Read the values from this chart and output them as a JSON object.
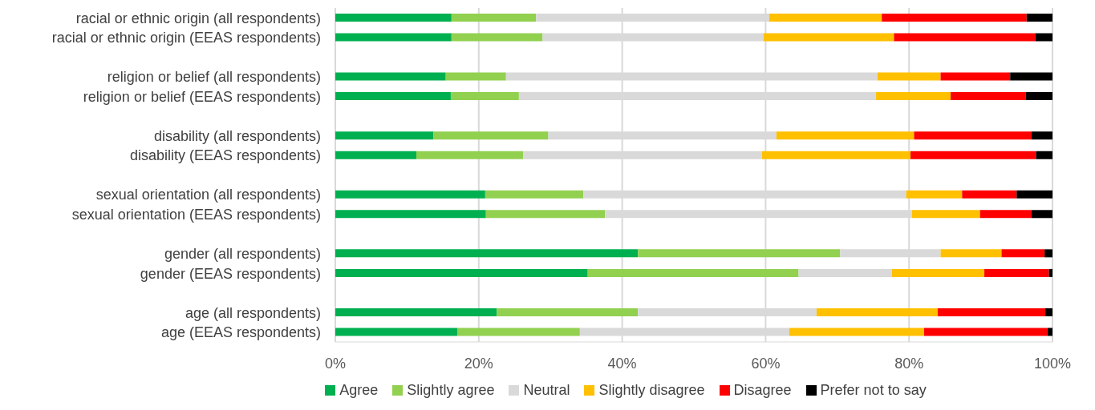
{
  "chart_data": {
    "type": "bar",
    "orientation": "horizontal",
    "stacked": true,
    "grid": "x",
    "legend": "bottom",
    "categories": [
      "racial or ethnic origin (all respondents)",
      "racial or ethnic origin (EEAS respondents)",
      null,
      "religion or belief (all respondents)",
      "religion or belief (EEAS respondents)",
      null,
      "disability (all respondents)",
      "disability (EEAS respondents)",
      null,
      "sexual orientation (all respondents)",
      "sexual orientation (EEAS respondents)",
      null,
      "gender (all respondents)",
      "gender (EEAS respondents)",
      null,
      "age (all respondents)",
      "age (EEAS respondents)"
    ],
    "xlim": [
      0,
      100
    ],
    "xticks": [
      {
        "value": 0,
        "label": "0%"
      },
      {
        "value": 20,
        "label": "20%"
      },
      {
        "value": 40,
        "label": "40%"
      },
      {
        "value": 60,
        "label": "60%"
      },
      {
        "value": 80,
        "label": "80%"
      },
      {
        "value": 100,
        "label": "100%"
      }
    ],
    "series": [
      {
        "name": "Agree",
        "color": "#00b050",
        "values": [
          16.2,
          16.2,
          null,
          15.4,
          16.1,
          null,
          13.7,
          11.3,
          null,
          20.9,
          21.0,
          null,
          42.2,
          35.2,
          null,
          22.5,
          17.0
        ]
      },
      {
        "name": "Slightly agree",
        "color": "#92d050",
        "values": [
          11.8,
          12.7,
          null,
          8.4,
          9.5,
          null,
          16.0,
          14.9,
          null,
          13.7,
          16.6,
          null,
          28.2,
          29.4,
          null,
          19.7,
          17.1
        ]
      },
      {
        "name": "Neutral",
        "color": "#d9d9d9",
        "values": [
          32.5,
          30.8,
          null,
          51.8,
          49.8,
          null,
          31.8,
          33.3,
          null,
          45.0,
          42.8,
          null,
          14.0,
          13.0,
          null,
          24.9,
          29.2
        ]
      },
      {
        "name": "Slightly disagree",
        "color": "#ffc000",
        "values": [
          15.7,
          18.2,
          null,
          8.8,
          10.4,
          null,
          19.2,
          20.7,
          null,
          7.8,
          9.5,
          null,
          8.5,
          12.9,
          null,
          16.9,
          18.8
        ]
      },
      {
        "name": "Disagree",
        "color": "#ff0000",
        "values": [
          20.2,
          19.7,
          null,
          9.7,
          10.5,
          null,
          16.4,
          17.5,
          null,
          7.6,
          7.2,
          null,
          6.0,
          9.0,
          null,
          15.0,
          17.2
        ]
      },
      {
        "name": "Prefer not to say",
        "color": "#000000",
        "values": [
          3.6,
          2.4,
          null,
          5.9,
          3.7,
          null,
          2.9,
          2.3,
          null,
          5.0,
          2.9,
          null,
          1.1,
          0.5,
          null,
          1.0,
          0.7
        ]
      }
    ]
  }
}
